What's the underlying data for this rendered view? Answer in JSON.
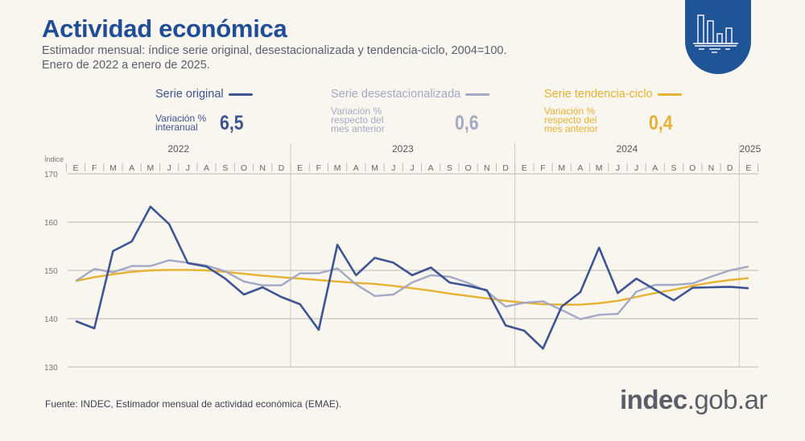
{
  "header": {
    "title": "Actividad económica",
    "subtitle_line1": "Estimador mensual: índice serie original, desestacionalizada y tendencia-ciclo, 2004=100.",
    "subtitle_line2": "Enero de 2022 a enero de 2025."
  },
  "badge_icon": "bar-chart-icon",
  "legend": [
    {
      "label": "Serie original",
      "color": "#3d5593",
      "variation_label": "Variación % interanual",
      "variation_lines": [
        "Variación %",
        "interanual"
      ],
      "value": "6,5"
    },
    {
      "label": "Serie desestacionalizada",
      "color": "#a3a9c4",
      "variation_label": "Variación % respecto del mes anterior",
      "variation_lines": [
        "Variación %",
        "respecto del",
        "mes anterior"
      ],
      "value": "0,6"
    },
    {
      "label": "Serie tendencia-ciclo",
      "color": "#e5b232",
      "variation_label": "Variación % respecto del mes anterior",
      "variation_lines": [
        "Variación %",
        "respecto del",
        "mes anterior"
      ],
      "value": "0,4"
    }
  ],
  "footer": {
    "source": "Fuente: INDEC, Estimador mensual de actividad económica (EMAE).",
    "logo_text": "indec.gob.ar"
  },
  "chart_data": {
    "type": "line",
    "ylabel": "Índice",
    "ylim": [
      130,
      170
    ],
    "yticks": [
      130,
      140,
      150,
      160,
      170
    ],
    "grid": true,
    "years": [
      "2022",
      "2023",
      "2024",
      "2025"
    ],
    "categories": [
      "E",
      "F",
      "M",
      "A",
      "M",
      "J",
      "J",
      "A",
      "S",
      "O",
      "N",
      "D",
      "E",
      "F",
      "M",
      "A",
      "M",
      "J",
      "J",
      "A",
      "S",
      "O",
      "N",
      "D",
      "E",
      "F",
      "M",
      "A",
      "M",
      "J",
      "J",
      "A",
      "S",
      "O",
      "N",
      "D",
      "E"
    ],
    "series": [
      {
        "name": "Serie original",
        "color": "#3d5593",
        "values": [
          139.5,
          138.0,
          154.0,
          156.0,
          163.2,
          159.6,
          151.5,
          150.8,
          148.3,
          145.0,
          146.5,
          144.5,
          143.0,
          137.7,
          155.3,
          149.0,
          152.6,
          151.6,
          149.0,
          150.6,
          147.5,
          146.8,
          145.9,
          138.6,
          137.5,
          133.8,
          142.5,
          145.5,
          154.7,
          145.3,
          148.3,
          146.0,
          143.8,
          146.4,
          146.5,
          146.6,
          146.3
        ]
      },
      {
        "name": "Serie desestacionalizada",
        "color": "#a3a9c4",
        "values": [
          147.8,
          150.3,
          149.6,
          150.9,
          150.9,
          152.1,
          151.6,
          151.0,
          149.8,
          147.7,
          146.9,
          146.9,
          149.4,
          149.4,
          150.4,
          147.1,
          144.7,
          145.0,
          147.5,
          149.0,
          148.7,
          147.4,
          145.7,
          142.5,
          143.3,
          143.6,
          141.8,
          139.9,
          140.8,
          141.0,
          145.6,
          147.0,
          147.0,
          147.3,
          148.7,
          150.0,
          150.8
        ]
      },
      {
        "name": "Serie tendencia-ciclo",
        "color": "#e5b232",
        "values": [
          147.8,
          148.6,
          149.2,
          149.7,
          150.0,
          150.1,
          150.1,
          150.0,
          149.7,
          149.3,
          148.9,
          148.6,
          148.3,
          148.0,
          147.7,
          147.4,
          147.2,
          146.8,
          146.3,
          145.8,
          145.2,
          144.7,
          144.2,
          143.7,
          143.3,
          143.0,
          142.9,
          142.9,
          143.2,
          143.7,
          144.5,
          145.3,
          146.0,
          146.8,
          147.5,
          148.0,
          148.4
        ]
      }
    ]
  }
}
